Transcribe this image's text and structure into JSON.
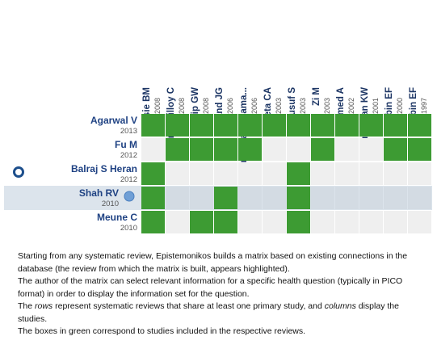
{
  "matrix": {
    "columns": [
      {
        "name": "Massie BM",
        "year": "2008"
      },
      {
        "name": "Tribouilloy C",
        "year": "2008"
      },
      {
        "name": "Yip GW",
        "year": "2008"
      },
      {
        "name": "Cleland JG",
        "year": "2006"
      },
      {
        "name": "Grigorian Shama...",
        "year": "2006"
      },
      {
        "name": "Sueta CA",
        "year": "2003"
      },
      {
        "name": "Yusuf S",
        "year": "2003"
      },
      {
        "name": "Zi M",
        "year": "2003"
      },
      {
        "name": "Ahmed A",
        "year": "2002"
      },
      {
        "name": "Dauterman KW",
        "year": "2001"
      },
      {
        "name": "Philbin EF",
        "year": "2000"
      },
      {
        "name": "Philbin EF",
        "year": "1997"
      }
    ],
    "rows": [
      {
        "name": "Agarwal V",
        "year": "2013",
        "highlighted": false,
        "cells": [
          true,
          true,
          true,
          true,
          true,
          true,
          true,
          true,
          true,
          true,
          true,
          true
        ]
      },
      {
        "name": "Fu M",
        "year": "2012",
        "highlighted": false,
        "cells": [
          false,
          true,
          true,
          true,
          true,
          false,
          false,
          true,
          false,
          false,
          true,
          true
        ]
      },
      {
        "name": "Balraj S Heran",
        "year": "2012",
        "highlighted": false,
        "cells": [
          true,
          false,
          false,
          false,
          false,
          false,
          true,
          false,
          false,
          false,
          false,
          false
        ]
      },
      {
        "name": "Shah RV",
        "year": "2010",
        "highlighted": true,
        "cells": [
          true,
          false,
          false,
          true,
          false,
          false,
          true,
          false,
          false,
          false,
          false,
          false
        ]
      },
      {
        "name": "Meune C",
        "year": "2010",
        "highlighted": false,
        "cells": [
          true,
          false,
          true,
          true,
          false,
          false,
          true,
          false,
          false,
          false,
          false,
          false
        ]
      }
    ],
    "included_color": "#3d9b33"
  },
  "description": {
    "paragraphs": [
      [
        "Starting from any systematic review, Epistemonikos builds a matrix based on existing connections in the database (the review from which the matrix is built, appears highlighted)."
      ],
      [
        "The author of the matrix can select relevant information for a specific health question (typically in PICO format) in order to display the information set for the question."
      ],
      [
        "The ",
        "rows",
        " represent systematic reviews that share at least one primary study, and ",
        "columns",
        " display the studies."
      ],
      [
        "The boxes in green correspond to studies included in the respective reviews."
      ]
    ]
  }
}
